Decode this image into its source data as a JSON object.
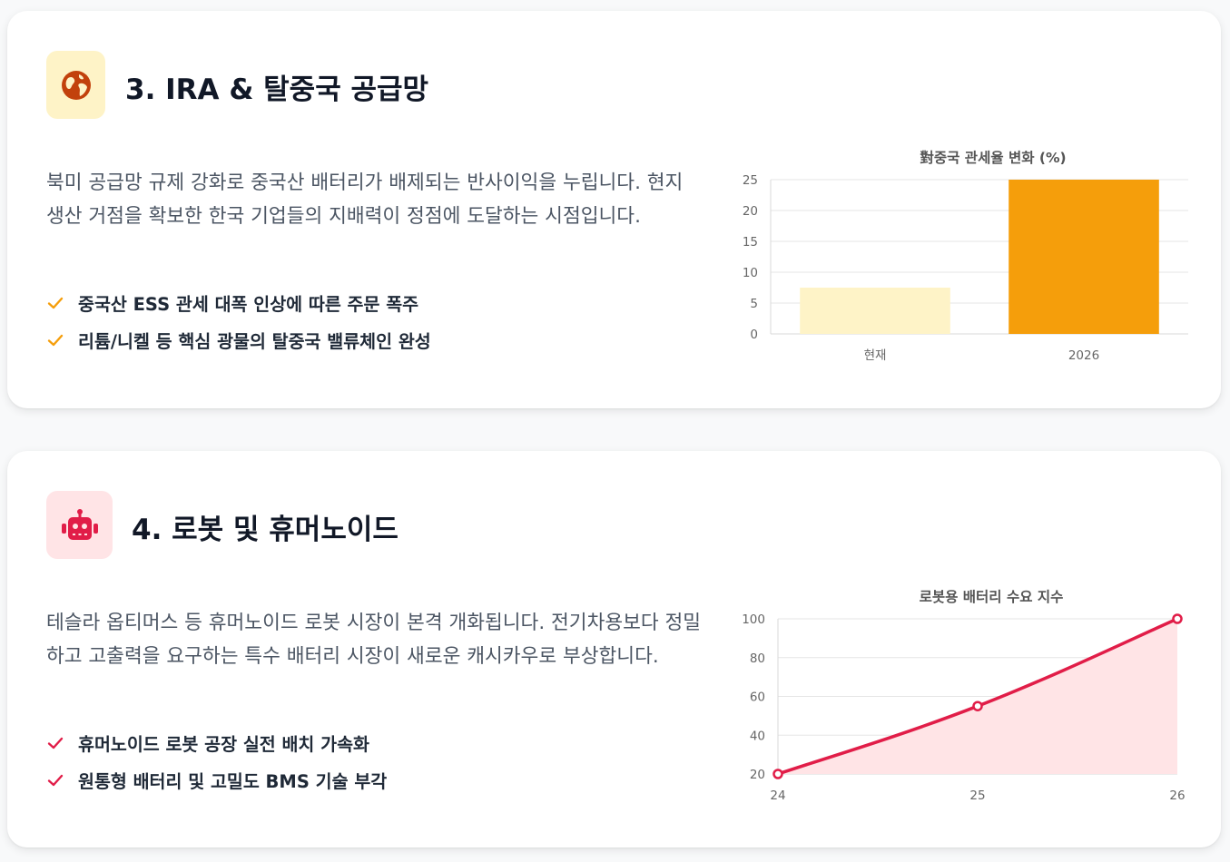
{
  "sections": [
    {
      "icon": "globe-icon",
      "accent": "#f59e0b",
      "icon_color": "#c2410c",
      "icon_bg": "#fef3c7",
      "title": "3. IRA & 탈중국 공급망",
      "description": "북미 공급망 규제 강화로 중국산 배터리가 배제되는 반사이익을 누립니다. 현지 생산 거점을 확보한 한국 기업들의 지배력이 정점에 도달하는 시점입니다.",
      "bullets": [
        "중국산 ESS 관세 대폭 인상에 따른 주문 폭주",
        "리튬/니켈 등 핵심 광물의 탈중국 밸류체인 완성"
      ],
      "chart_data": {
        "type": "bar",
        "title": "對중국 관세율 변화 (%)",
        "categories": [
          "현재",
          "2026"
        ],
        "values": [
          7.5,
          25
        ],
        "colors": [
          "#fef3c7",
          "#f59e0b"
        ],
        "ylim": [
          0,
          25
        ],
        "yticks": [
          "0",
          "5",
          "10",
          "15",
          "20",
          "25"
        ],
        "grid": true,
        "legend": "none"
      }
    },
    {
      "icon": "robot-icon",
      "accent": "#e11d48",
      "icon_color": "#e11d48",
      "icon_bg": "#ffe4e6",
      "title": "4. 로봇 및 휴머노이드",
      "description": "테슬라 옵티머스 등 휴머노이드 로봇 시장이 본격 개화됩니다. 전기차용보다 정밀하고 고출력을 요구하는 특수 배터리 시장이 새로운 캐시카우로 부상합니다.",
      "bullets": [
        "휴머노이드 로봇 공장 실전 배치 가속화",
        "원통형 배터리 및 고밀도 BMS 기술 부각"
      ],
      "chart_data": {
        "type": "area",
        "title": "로봇용 배터리 수요 지수",
        "x": [
          "24",
          "25",
          "26"
        ],
        "values": [
          20,
          55,
          100
        ],
        "line_color": "#e11d48",
        "fill_color": "#ffe4e6",
        "ylim": [
          20,
          100
        ],
        "yticks": [
          "20",
          "40",
          "60",
          "80",
          "100"
        ],
        "grid": true,
        "legend": "none"
      }
    }
  ]
}
